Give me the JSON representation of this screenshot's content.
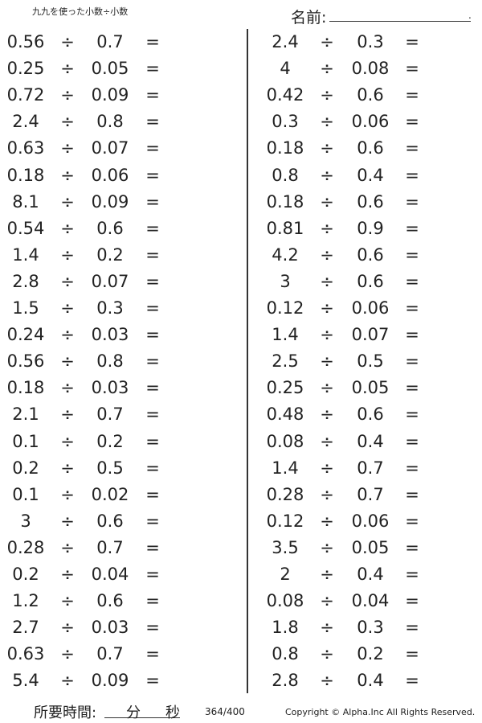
{
  "header": {
    "title": "九九を使った小数÷小数",
    "name_label": "名前:",
    "name_end": "."
  },
  "operator": "÷",
  "equals": "=",
  "left": [
    [
      "0.56",
      "0.7"
    ],
    [
      "0.25",
      "0.05"
    ],
    [
      "0.72",
      "0.09"
    ],
    [
      "2.4",
      "0.8"
    ],
    [
      "0.63",
      "0.07"
    ],
    [
      "0.18",
      "0.06"
    ],
    [
      "8.1",
      "0.09"
    ],
    [
      "0.54",
      "0.6"
    ],
    [
      "1.4",
      "0.2"
    ],
    [
      "2.8",
      "0.07"
    ],
    [
      "1.5",
      "0.3"
    ],
    [
      "0.24",
      "0.03"
    ],
    [
      "0.56",
      "0.8"
    ],
    [
      "0.18",
      "0.03"
    ],
    [
      "2.1",
      "0.7"
    ],
    [
      "0.1",
      "0.2"
    ],
    [
      "0.2",
      "0.5"
    ],
    [
      "0.1",
      "0.02"
    ],
    [
      "3",
      "0.6"
    ],
    [
      "0.28",
      "0.7"
    ],
    [
      "0.2",
      "0.04"
    ],
    [
      "1.2",
      "0.6"
    ],
    [
      "2.7",
      "0.03"
    ],
    [
      "0.63",
      "0.7"
    ],
    [
      "5.4",
      "0.09"
    ]
  ],
  "right": [
    [
      "2.4",
      "0.3"
    ],
    [
      "4",
      "0.08"
    ],
    [
      "0.42",
      "0.6"
    ],
    [
      "0.3",
      "0.06"
    ],
    [
      "0.18",
      "0.6"
    ],
    [
      "0.8",
      "0.4"
    ],
    [
      "0.18",
      "0.6"
    ],
    [
      "0.81",
      "0.9"
    ],
    [
      "4.2",
      "0.6"
    ],
    [
      "3",
      "0.6"
    ],
    [
      "0.12",
      "0.06"
    ],
    [
      "1.4",
      "0.07"
    ],
    [
      "2.5",
      "0.5"
    ],
    [
      "0.25",
      "0.05"
    ],
    [
      "0.48",
      "0.6"
    ],
    [
      "0.08",
      "0.4"
    ],
    [
      "1.4",
      "0.7"
    ],
    [
      "0.28",
      "0.7"
    ],
    [
      "0.12",
      "0.06"
    ],
    [
      "3.5",
      "0.05"
    ],
    [
      "2",
      "0.4"
    ],
    [
      "0.08",
      "0.04"
    ],
    [
      "1.8",
      "0.3"
    ],
    [
      "0.8",
      "0.2"
    ],
    [
      "2.8",
      "0.4"
    ]
  ],
  "footer": {
    "time_label": "所要時間:",
    "minutes": "分",
    "seconds": "秒",
    "page": "364/400",
    "copyright": "Copyright © Alpha.Inc All Rights Reserved."
  }
}
